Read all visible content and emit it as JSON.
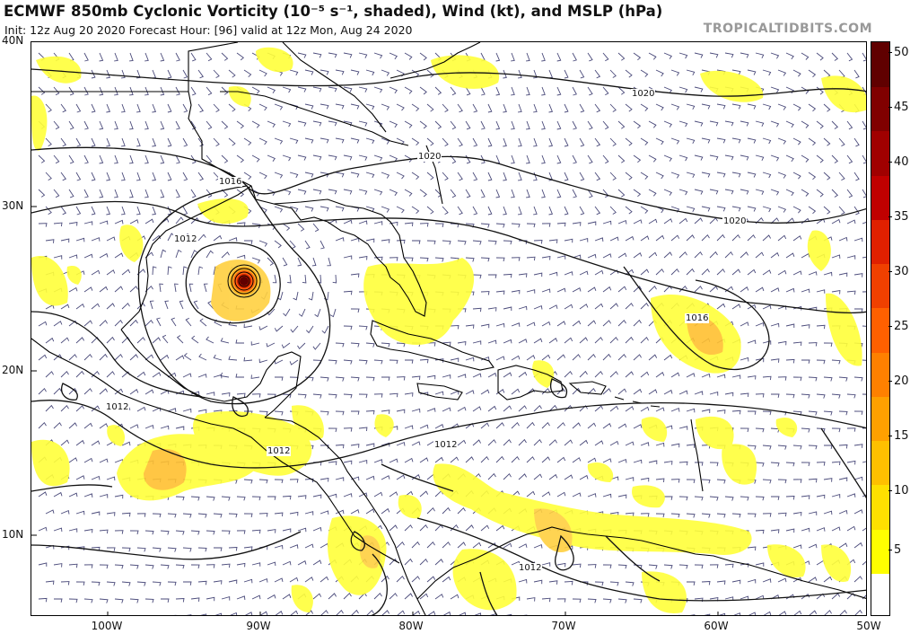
{
  "title": "ECMWF 850mb Cyclonic Vorticity (10⁻⁵ s⁻¹, shaded), Wind (kt), and MSLP (hPa)",
  "subtitle": "Init: 12z Aug 20 2020   Forecast Hour: [96]   valid at 12z Mon, Aug 24 2020",
  "credit": "TROPICALTIDBITS.COM",
  "map": {
    "lat_labels": [
      "40N",
      "30N",
      "20N",
      "10N"
    ],
    "lon_labels": [
      "100W",
      "90W",
      "80W",
      "70W",
      "60W",
      "50W"
    ],
    "isobar_labels": [
      "1020",
      "1020",
      "1020",
      "1016",
      "1016",
      "1012",
      "1012",
      "1012",
      "1012",
      "1012"
    ],
    "colors": {
      "land_outline": "#000000",
      "wind_barb": "#4a4a7a",
      "isobar": "#111111"
    }
  },
  "colorbar": {
    "labels": [
      "50",
      "45",
      "40",
      "35",
      "30",
      "25",
      "20",
      "15",
      "10",
      "5"
    ],
    "colors": [
      "#ffffff",
      "#ffff00",
      "#ffe000",
      "#ffc000",
      "#ffa000",
      "#ff8000",
      "#ff6000",
      "#f04000",
      "#e02000",
      "#c00000",
      "#a00000",
      "#800000",
      "#600000"
    ]
  }
}
